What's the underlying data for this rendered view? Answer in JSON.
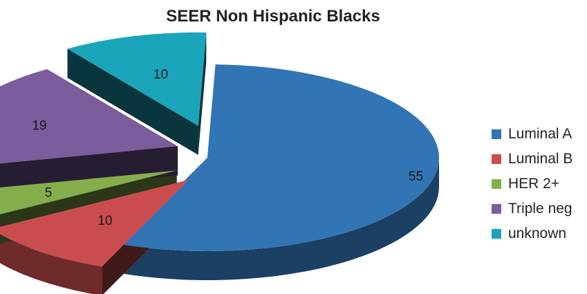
{
  "chart_data": {
    "type": "pie",
    "title": "SEER Non Hispanic Blacks",
    "categories": [
      "Luminal A",
      "Luminal B",
      "HER 2+",
      "Triple neg",
      "unknown"
    ],
    "values": [
      55,
      10,
      5,
      19,
      10
    ],
    "data_labels": [
      "55",
      "10",
      "5",
      "19",
      "10"
    ],
    "colors": [
      "#3275B4",
      "#C94D4F",
      "#86AD4C",
      "#7B5C9C",
      "#1BA5BA"
    ],
    "exploded": true,
    "three_d": true,
    "legend_position": "right"
  }
}
